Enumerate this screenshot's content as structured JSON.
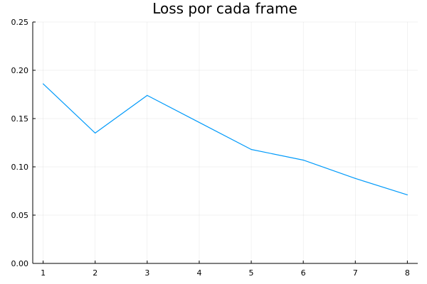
{
  "chart_data": {
    "type": "line",
    "title": "Loss por cada frame",
    "xlabel": "",
    "ylabel": "",
    "x": [
      1,
      2,
      3,
      4,
      5,
      6,
      7,
      8
    ],
    "series": [
      {
        "values": [
          0.186,
          0.135,
          0.174,
          0.146,
          0.118,
          0.107,
          0.088,
          0.071
        ]
      }
    ],
    "xlim": [
      0.8,
      8.2
    ],
    "ylim": [
      0,
      0.25
    ],
    "xticks": [
      "1",
      "2",
      "3",
      "4",
      "5",
      "6",
      "7",
      "8"
    ],
    "yticks": [
      "0.00",
      "0.05",
      "0.10",
      "0.15",
      "0.20",
      "0.25"
    ],
    "grid": true,
    "legend": "none",
    "line_color": "#009AFA"
  }
}
